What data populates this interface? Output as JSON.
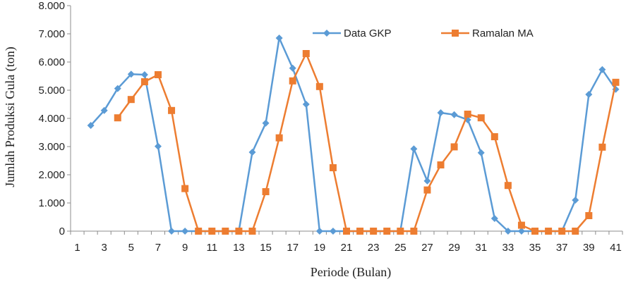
{
  "chart_data": {
    "type": "line",
    "title": "",
    "xlabel": "Periode (Bulan)",
    "ylabel": "Jumlah Produksi Gula (ton)",
    "ylim": [
      0,
      8000
    ],
    "y_ticks": [
      "0",
      "1.000",
      "2.000",
      "3.000",
      "4.000",
      "5.000",
      "6.000",
      "7.000",
      "8.000"
    ],
    "x_ticks": [
      "1",
      "3",
      "5",
      "7",
      "9",
      "11",
      "13",
      "15",
      "17",
      "19",
      "21",
      "23",
      "25",
      "27",
      "29",
      "31",
      "33",
      "35",
      "37",
      "39",
      "41"
    ],
    "x_range": [
      1,
      41
    ],
    "grid": false,
    "legend_position": "top-right",
    "series": [
      {
        "name": "Data GKP",
        "color": "#5b9bd5",
        "marker": "diamond",
        "points": [
          [
            2,
            3750
          ],
          [
            3,
            4280
          ],
          [
            4,
            5060
          ],
          [
            5,
            5570
          ],
          [
            6,
            5550
          ],
          [
            7,
            3010
          ],
          [
            8,
            0
          ],
          [
            9,
            0
          ],
          [
            10,
            0
          ],
          [
            11,
            0
          ],
          [
            12,
            0
          ],
          [
            13,
            0
          ],
          [
            14,
            2800
          ],
          [
            15,
            3830
          ],
          [
            16,
            6850
          ],
          [
            17,
            5780
          ],
          [
            18,
            4500
          ],
          [
            19,
            0
          ],
          [
            20,
            0
          ],
          [
            21,
            0
          ],
          [
            22,
            0
          ],
          [
            23,
            0
          ],
          [
            24,
            0
          ],
          [
            25,
            0
          ],
          [
            26,
            2920
          ],
          [
            27,
            1780
          ],
          [
            28,
            4200
          ],
          [
            29,
            4130
          ],
          [
            30,
            3950
          ],
          [
            31,
            2780
          ],
          [
            32,
            450
          ],
          [
            33,
            0
          ],
          [
            34,
            0
          ],
          [
            35,
            0
          ],
          [
            36,
            0
          ],
          [
            37,
            0
          ],
          [
            38,
            1100
          ],
          [
            39,
            4850
          ],
          [
            40,
            5730
          ],
          [
            41,
            5030
          ]
        ]
      },
      {
        "name": "Ramalan MA",
        "color": "#ed7d31",
        "marker": "square",
        "points": [
          [
            4,
            4020
          ],
          [
            5,
            4670
          ],
          [
            6,
            5300
          ],
          [
            7,
            5550
          ],
          [
            8,
            4280
          ],
          [
            9,
            1510
          ],
          [
            10,
            0
          ],
          [
            11,
            0
          ],
          [
            12,
            0
          ],
          [
            13,
            0
          ],
          [
            14,
            0
          ],
          [
            15,
            1400
          ],
          [
            16,
            3310
          ],
          [
            17,
            5330
          ],
          [
            18,
            6300
          ],
          [
            19,
            5130
          ],
          [
            20,
            2250
          ],
          [
            21,
            0
          ],
          [
            22,
            0
          ],
          [
            23,
            0
          ],
          [
            24,
            0
          ],
          [
            25,
            0
          ],
          [
            26,
            0
          ],
          [
            27,
            1460
          ],
          [
            28,
            2350
          ],
          [
            29,
            2990
          ],
          [
            30,
            4150
          ],
          [
            31,
            4020
          ],
          [
            32,
            3350
          ],
          [
            33,
            1620
          ],
          [
            34,
            210
          ],
          [
            35,
            0
          ],
          [
            36,
            0
          ],
          [
            37,
            0
          ],
          [
            38,
            0
          ],
          [
            39,
            550
          ],
          [
            40,
            2980
          ],
          [
            41,
            5280
          ]
        ]
      }
    ]
  }
}
